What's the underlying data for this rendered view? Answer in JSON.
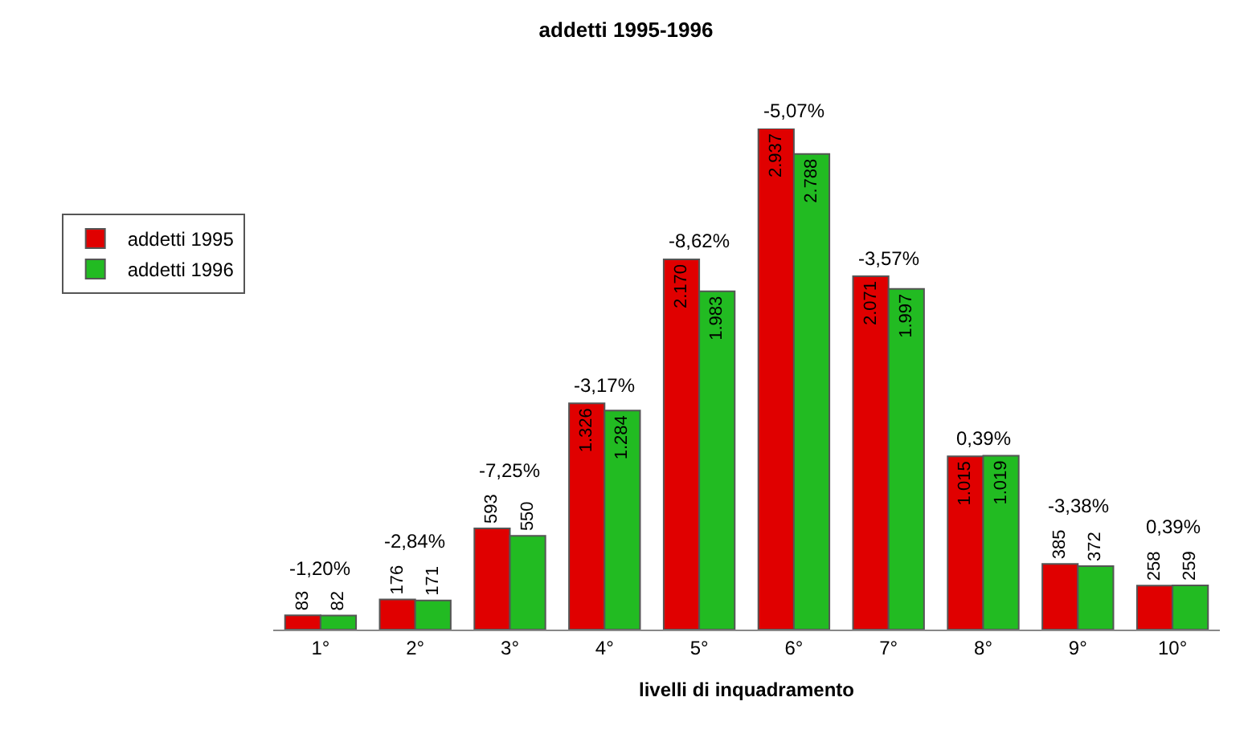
{
  "chart_data": {
    "type": "bar",
    "title": "addetti 1995-1996",
    "xlabel": "livelli di inquadramento",
    "categories": [
      "1°",
      "2°",
      "3°",
      "4°",
      "5°",
      "6°",
      "7°",
      "8°",
      "9°",
      "10°"
    ],
    "series": [
      {
        "name": "addetti 1995",
        "color": "#e00000",
        "values": [
          83,
          176,
          593,
          1326,
          2170,
          2937,
          2071,
          1015,
          385,
          258
        ],
        "value_labels": [
          "83",
          "176",
          "593",
          "1.326",
          "2.170",
          "2.937",
          "2.071",
          "1.015",
          "385",
          "258"
        ]
      },
      {
        "name": "addetti 1996",
        "color": "#22bb22",
        "values": [
          82,
          171,
          550,
          1284,
          1983,
          2788,
          1997,
          1019,
          372,
          259
        ],
        "value_labels": [
          "82",
          "171",
          "550",
          "1.284",
          "1.983",
          "2.788",
          "1.997",
          "1.019",
          "372",
          "259"
        ]
      }
    ],
    "annotations": [
      {
        "text": "-1,20%",
        "x": "1°",
        "y": 83
      },
      {
        "text": "-2,84%",
        "x": "2°",
        "y": 176
      },
      {
        "text": "-7,25%",
        "x": "3°",
        "y": 593
      },
      {
        "text": "-3,17%",
        "x": "4°",
        "y": 1326
      },
      {
        "text": "-8,62%",
        "x": "5°",
        "y": 2170
      },
      {
        "text": "-5,07%",
        "x": "6°",
        "y": 2937
      },
      {
        "text": "-3,57%",
        "x": "7°",
        "y": 2071
      },
      {
        "text": "0,39%",
        "x": "8°",
        "y": 1019
      },
      {
        "text": "-3,38%",
        "x": "9°",
        "y": 385
      },
      {
        "text": "0,39%",
        "x": "10°",
        "y": 259
      }
    ],
    "legend": "left"
  }
}
